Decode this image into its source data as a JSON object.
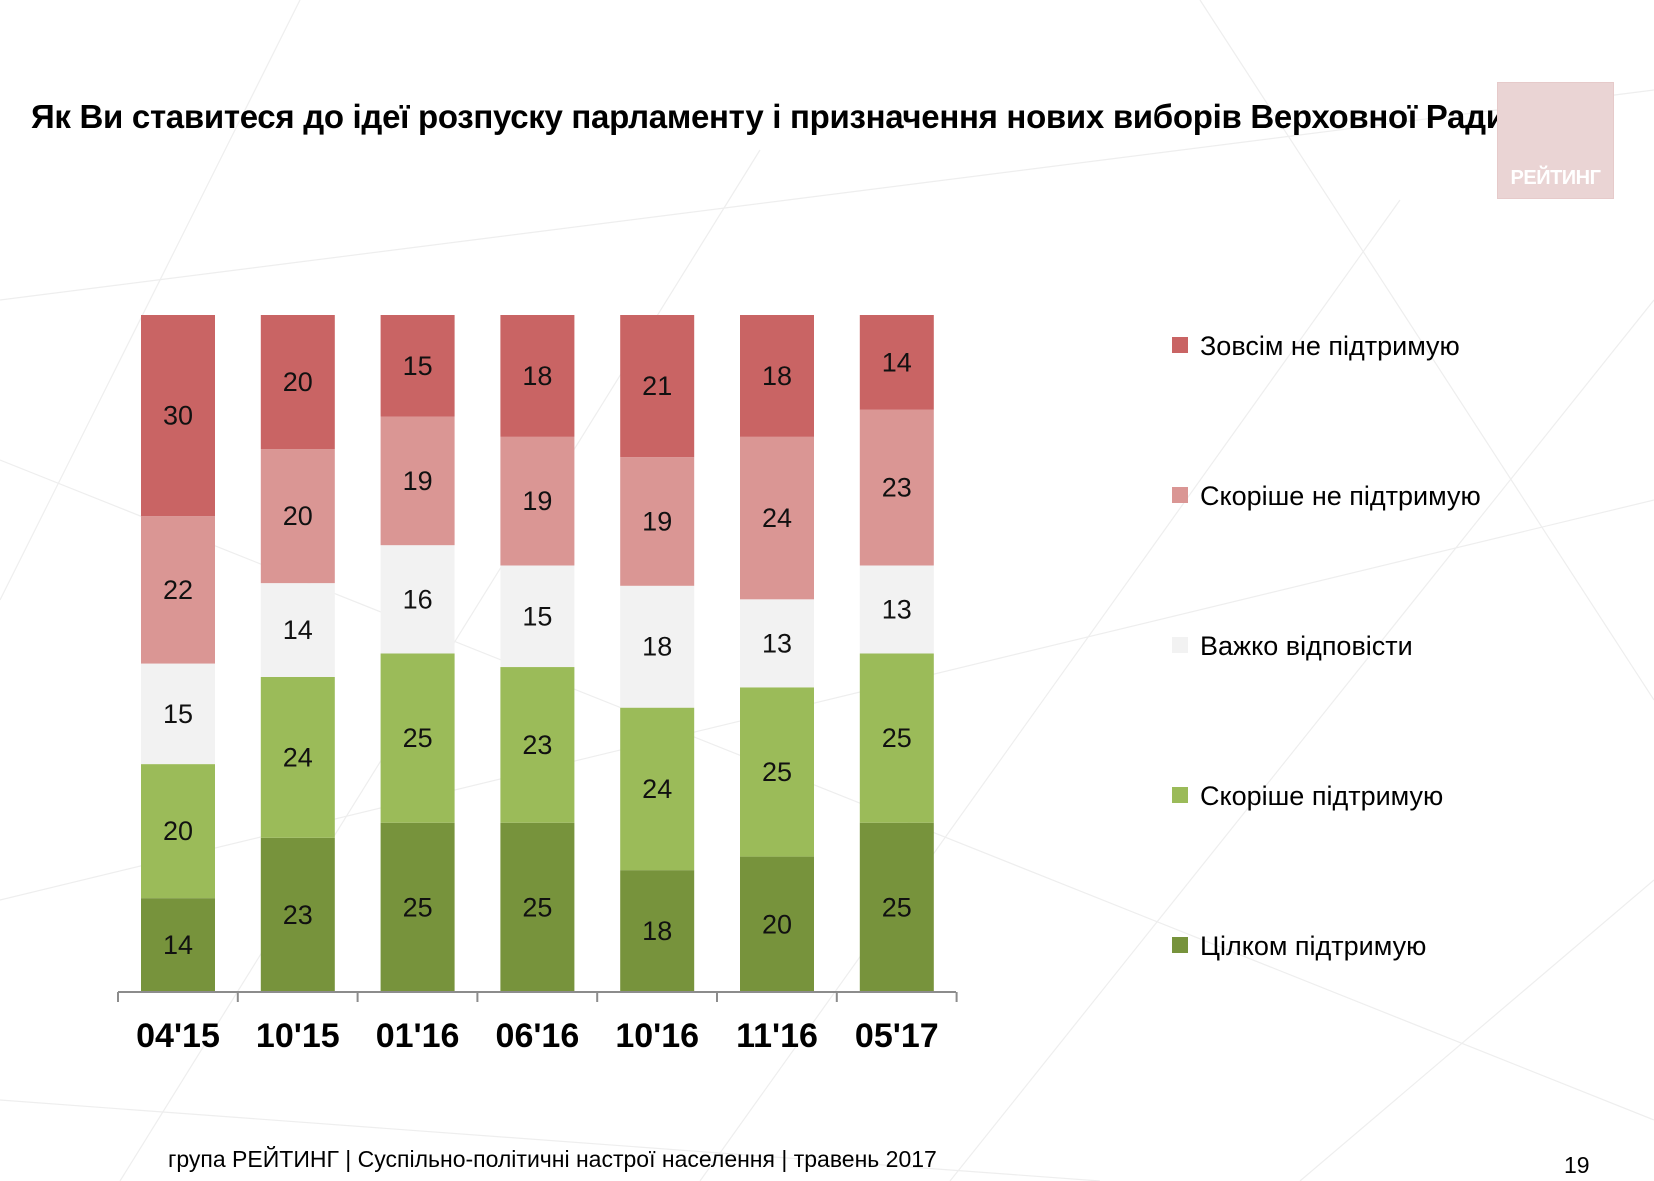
{
  "title": "Як Ви ставитеся до ідеї розпуску парламенту і призначення нових виборів Верховної Ради?",
  "logo": {
    "text": "РЕЙТИНГ",
    "color": "#ead4d4"
  },
  "footer": {
    "text": "група РЕЙТИНГ  | Суспільно-політичні настрої населення  |  травень 2017",
    "page_number": "19"
  },
  "chart_data": {
    "type": "bar",
    "stacked": true,
    "title": "Як Ви ставитеся до ідеї розпуску парламенту і призначення нових виборів Верховної Ради?",
    "xlabel": "",
    "ylabel": "",
    "ylim": [
      0,
      100
    ],
    "categories": [
      "04'15",
      "10'15",
      "01'16",
      "06'16",
      "10'16",
      "11'16",
      "05'17"
    ],
    "series": [
      {
        "name": "Цілком підтримую",
        "color": "#77933c",
        "values": [
          14,
          23,
          25,
          25,
          18,
          20,
          25
        ]
      },
      {
        "name": "Скоріше  підтримую",
        "color": "#9bbb59",
        "values": [
          20,
          24,
          25,
          23,
          24,
          25,
          25
        ]
      },
      {
        "name": "Важко відповісти",
        "color": "#f2f2f2",
        "values": [
          15,
          14,
          16,
          15,
          18,
          13,
          13
        ]
      },
      {
        "name": "Скоріше не підтримую",
        "color": "#da9694",
        "values": [
          22,
          20,
          19,
          19,
          19,
          24,
          23
        ]
      },
      {
        "name": "Зовсім не підтримую",
        "color": "#c96464",
        "values": [
          30,
          20,
          15,
          18,
          21,
          18,
          14
        ]
      }
    ],
    "legend_order": [
      "Зовсім не підтримую",
      "Скоріше не підтримую",
      "Важко відповісти",
      "Скоріше  підтримую",
      "Цілком підтримую"
    ],
    "legend_position": "right",
    "grid": false
  }
}
